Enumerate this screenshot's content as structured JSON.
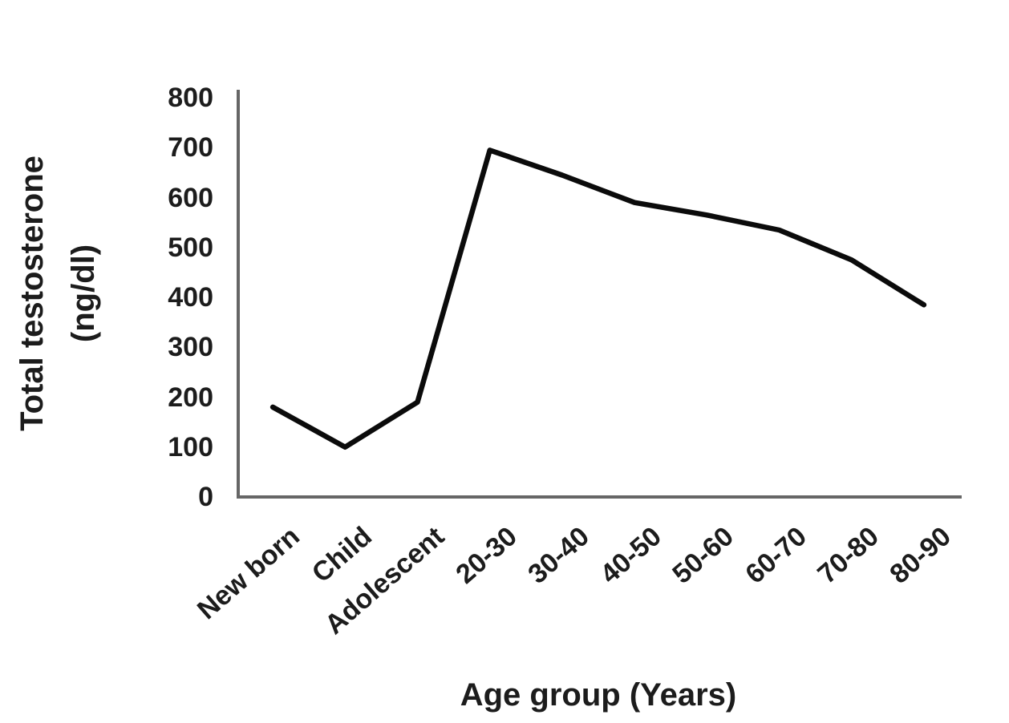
{
  "chart_data": {
    "type": "line",
    "title": "",
    "categories": [
      "New born",
      "Child",
      "Adolescent",
      "20-30",
      "30-40",
      "40-50",
      "50-60",
      "60-70",
      "70-80",
      "80-90"
    ],
    "values": [
      180,
      100,
      190,
      695,
      645,
      590,
      565,
      535,
      475,
      385
    ],
    "xlabel": "Age group (Years)",
    "ylabel": "Total testosterone (ng/dl)",
    "ylabel_lines": {
      "line1": "Total testosterone",
      "line2": "(ng/dl)"
    },
    "ylim": [
      0,
      800
    ],
    "yticks": [
      800,
      700,
      600,
      500,
      400,
      300,
      200,
      100,
      0
    ],
    "grid": false,
    "legend": "none",
    "colors": {
      "line": "#0b0b0b",
      "axis": "#666666",
      "text": "#1c1c1c"
    }
  }
}
